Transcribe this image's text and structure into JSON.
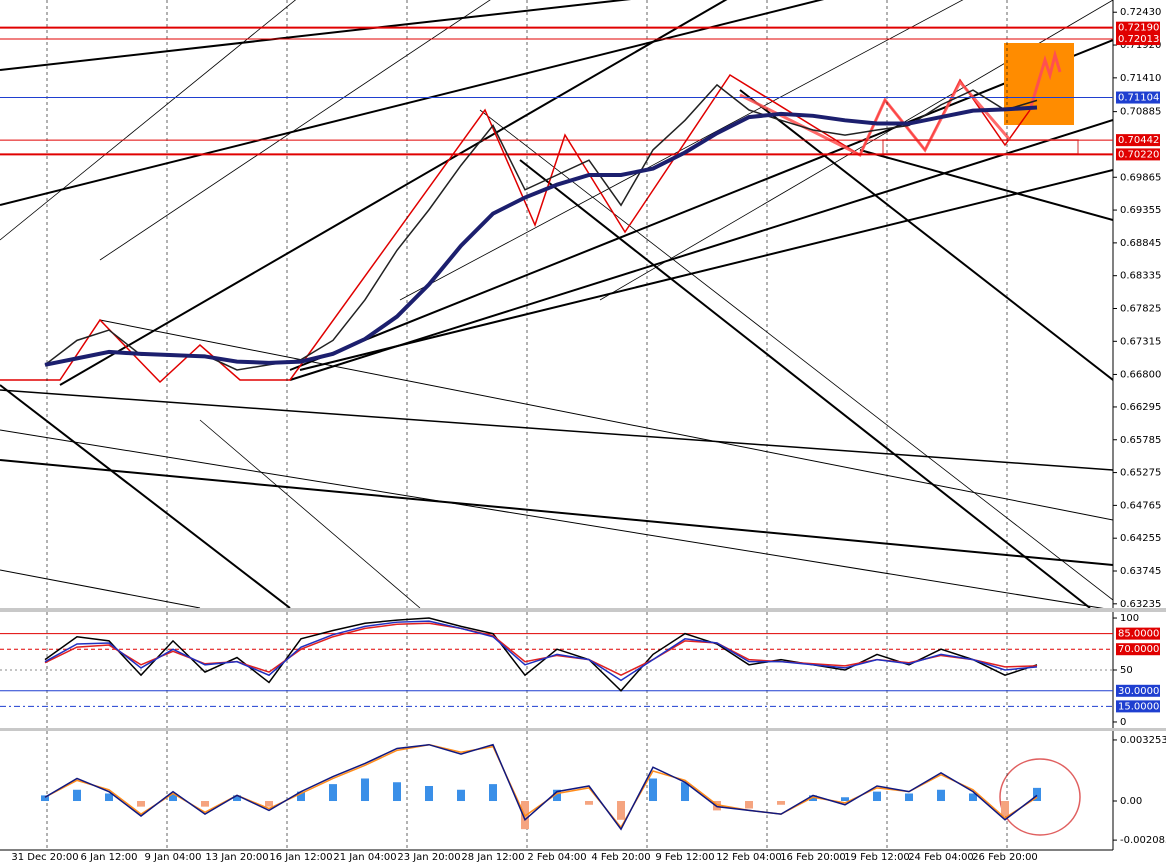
{
  "chart_data": [
    {
      "type": "line",
      "ylim": [
        0.6317,
        0.7262
      ],
      "yticks": [
        {
          "value": 0.7243,
          "label": "0.72430"
        },
        {
          "value": 0.7192,
          "label": "0.71920"
        },
        {
          "value": 0.7141,
          "label": "0.71410"
        },
        {
          "value": 0.70885,
          "label": "0.70885"
        },
        {
          "value": 0.69865,
          "label": "0.69865"
        },
        {
          "value": 0.69355,
          "label": "0.69355"
        },
        {
          "value": 0.68845,
          "label": "0.68845"
        },
        {
          "value": 0.68335,
          "label": "0.68335"
        },
        {
          "value": 0.67825,
          "label": "0.67825"
        },
        {
          "value": 0.67315,
          "label": "0.67315"
        },
        {
          "value": 0.668,
          "label": "0.66800"
        },
        {
          "value": 0.66295,
          "label": "0.66295"
        },
        {
          "value": 0.65785,
          "label": "0.65785"
        },
        {
          "value": 0.65275,
          "label": "0.65275"
        },
        {
          "value": 0.64765,
          "label": "0.64765"
        },
        {
          "value": 0.64255,
          "label": "0.64255"
        },
        {
          "value": 0.63745,
          "label": "0.63745"
        },
        {
          "value": 0.63235,
          "label": "0.63235"
        }
      ],
      "levels": [
        {
          "value": 0.7219,
          "label": "0.72190",
          "color": "#e00000"
        },
        {
          "value": 0.72013,
          "label": "0.72013",
          "color": "#e00000"
        },
        {
          "value": 0.71104,
          "label": "0.71104",
          "color": "#1f3fd0"
        },
        {
          "value": 0.70442,
          "label": "0.70442",
          "color": "#e00000"
        },
        {
          "value": 0.7022,
          "label": "0.70220",
          "color": "#e00000"
        }
      ],
      "series": [
        {
          "color": "#222222",
          "values": [
            0.6695,
            0.6733,
            0.6749,
            0.671,
            0.671,
            0.671,
            0.6687,
            0.6695,
            0.6703,
            0.6733,
            0.6796,
            0.6873,
            0.6936,
            0.7005,
            0.7067,
            0.6967,
            0.699,
            0.7013,
            0.6943,
            0.7029,
            0.7075,
            0.713,
            0.7091,
            0.7075,
            0.706,
            0.7052,
            0.706,
            0.7067,
            0.7099,
            0.7122,
            0.7091,
            0.7106
          ]
        },
        {
          "color": "#1c1f6e",
          "values": [
            0.6695,
            0.6705,
            0.6715,
            0.6712,
            0.671,
            0.6708,
            0.67,
            0.6698,
            0.67,
            0.6712,
            0.6735,
            0.677,
            0.682,
            0.688,
            0.693,
            0.6955,
            0.6975,
            0.699,
            0.699,
            0.7,
            0.7025,
            0.7055,
            0.708,
            0.7085,
            0.7082,
            0.7075,
            0.707,
            0.707,
            0.708,
            0.709,
            0.7092,
            0.7095
          ]
        }
      ]
    },
    {
      "type": "line",
      "ylim": [
        -5.8,
        105.8
      ],
      "yticks": [
        100,
        50,
        0
      ],
      "levels": [
        {
          "value": 85,
          "label": "85.0000",
          "color": "#e00000"
        },
        {
          "value": 70,
          "label": "70.0000",
          "color": "#e00000"
        },
        {
          "value": 30,
          "label": "30.0000",
          "color": "#1f3fd0"
        },
        {
          "value": 15,
          "label": "15.0000",
          "color": "#1f3fd0"
        }
      ],
      "series": [
        {
          "color": "#000000",
          "values": [
            60,
            82,
            78,
            45,
            78,
            48,
            62,
            38,
            80,
            88,
            95,
            98,
            100,
            92,
            85,
            45,
            70,
            60,
            30,
            65,
            85,
            75,
            55,
            60,
            55,
            50,
            65,
            55,
            70,
            60,
            45,
            55
          ]
        },
        {
          "color": "#e02020",
          "values": [
            57,
            72,
            74,
            55,
            68,
            56,
            58,
            48,
            70,
            82,
            90,
            94,
            95,
            90,
            83,
            58,
            64,
            60,
            45,
            60,
            78,
            76,
            60,
            58,
            56,
            54,
            60,
            57,
            64,
            60,
            53,
            54
          ]
        },
        {
          "color": "#2030c0",
          "values": [
            58,
            75,
            76,
            52,
            70,
            55,
            58,
            45,
            72,
            84,
            92,
            96,
            97,
            90,
            82,
            55,
            65,
            60,
            40,
            60,
            80,
            76,
            58,
            58,
            55,
            52,
            60,
            56,
            65,
            60,
            50,
            53
          ]
        }
      ]
    },
    {
      "type": "bar",
      "ylim": [
        -0.00261,
        0.00373
      ],
      "yticks": [
        0.003253,
        {
          "value": 0,
          "label": "0.00"
        },
        -0.002083
      ],
      "categories": [
        "31 Dec 20:00",
        null,
        "6 Jan 12:00",
        null,
        "9 Jan 04:00",
        null,
        "13 Jan 20:00",
        null,
        "16 Jan 12:00",
        null,
        "21 Jan 04:00",
        null,
        "23 Jan 20:00",
        null,
        "28 Jan 12:00",
        null,
        "2 Feb 04:00",
        null,
        "4 Feb 20:00",
        null,
        "9 Feb 12:00",
        null,
        "12 Feb 04:00",
        null,
        "16 Feb 20:00",
        null,
        "19 Feb 12:00",
        null,
        "24 Feb 04:00",
        null,
        "26 Feb 20:00",
        null
      ],
      "series": [
        {
          "style": "bar",
          "color": "#3a8fe8",
          "negative_color": "#f5a47f",
          "values": [
            0.0003,
            0.0006,
            0.0004,
            -0.0003,
            0.0004,
            -0.0003,
            0.0003,
            -0.0003,
            0.0005,
            0.0009,
            0.0012,
            0.001,
            0.0008,
            0.0006,
            0.0009,
            -0.0015,
            0.0006,
            -0.0002,
            -0.001,
            0.0012,
            0.001,
            -0.0005,
            -0.0004,
            -0.0002,
            0.0003,
            0.0002,
            0.0005,
            0.0004,
            0.0006,
            0.0004,
            -0.0008,
            0.0007
          ]
        },
        {
          "style": "line",
          "color": "#ff8c1a",
          "values": [
            0.0002,
            0.0011,
            0.0006,
            -0.0007,
            0.0004,
            -0.0006,
            0.0003,
            -0.0004,
            0.0004,
            0.0012,
            0.0019,
            0.0027,
            0.003,
            0.0026,
            0.0029,
            -0.0008,
            0.0004,
            0.0007,
            -0.0014,
            0.0016,
            0.0011,
            -0.0002,
            -0.0005,
            -0.0007,
            0.0002,
            -0.0001,
            0.0007,
            0.0005,
            0.0014,
            0.0006,
            -0.0009,
            0.0002
          ]
        },
        {
          "style": "line",
          "color": "#101880",
          "values": [
            0.0002,
            0.0012,
            0.0005,
            -0.0008,
            0.0005,
            -0.0007,
            0.0003,
            -0.0005,
            0.0005,
            0.0013,
            0.002,
            0.0028,
            0.003,
            0.0025,
            0.003,
            -0.001,
            0.0005,
            0.0008,
            -0.0015,
            0.0018,
            0.001,
            -0.0003,
            -0.0005,
            -0.0007,
            0.0003,
            -0.0002,
            0.0008,
            0.0005,
            0.0015,
            0.0005,
            -0.001,
            0.0003
          ]
        }
      ]
    }
  ]
}
